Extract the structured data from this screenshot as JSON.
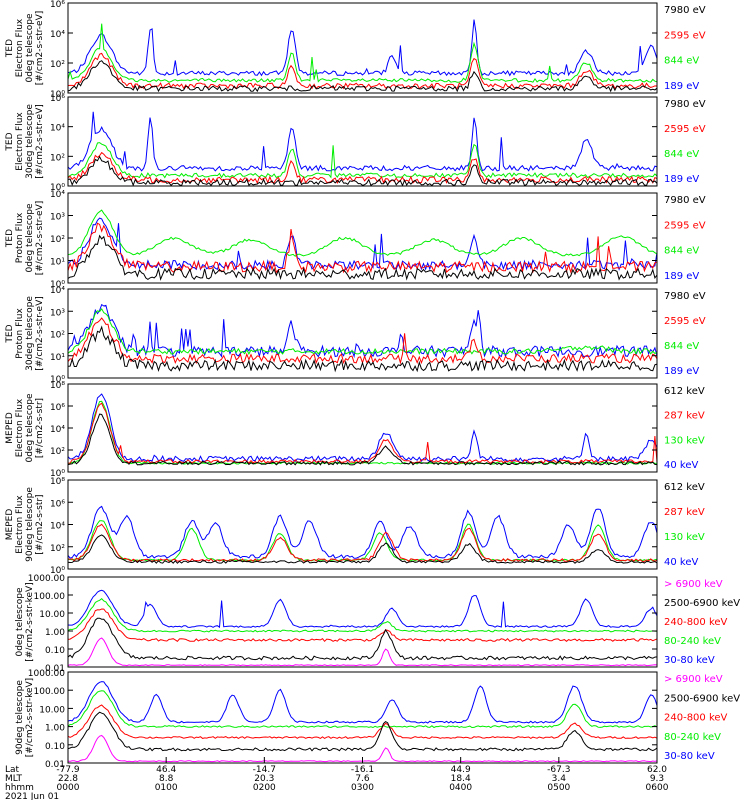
{
  "colors": {
    "blue": "#0000ff",
    "red": "#ff0000",
    "green": "#00ee00",
    "black": "#000000",
    "magenta": "#ff00ff"
  },
  "panels": [
    {
      "ylabel": [
        "TED",
        "Electron Flux",
        "0deg telescope",
        "[#/cm2-s-str-eV]"
      ],
      "ytick_labels": [
        "10⁶",
        "10⁴",
        "10²",
        "10⁰"
      ],
      "legend": [
        {
          "text": "7980 eV",
          "color": "black"
        },
        {
          "text": "2595 eV",
          "color": "red"
        },
        {
          "text": "844 eV",
          "color": "green"
        },
        {
          "text": "189 eV",
          "color": "blue"
        }
      ]
    },
    {
      "ylabel": [
        "TED",
        "Electron Flux",
        "30deg telescope",
        "[#/cm2-s-str-eV]"
      ],
      "ytick_labels": [
        "10⁶",
        "10⁴",
        "10²",
        "10⁰"
      ],
      "legend": [
        {
          "text": "7980 eV",
          "color": "black"
        },
        {
          "text": "2595 eV",
          "color": "red"
        },
        {
          "text": "844 eV",
          "color": "green"
        },
        {
          "text": "189 eV",
          "color": "blue"
        }
      ]
    },
    {
      "ylabel": [
        "TED",
        "Proton Flux",
        "0deg telescope",
        "[#/cm2-s-str-eV]"
      ],
      "ytick_labels": [
        "10⁴",
        "10³",
        "10²",
        "10¹",
        "10⁰"
      ],
      "legend": [
        {
          "text": "7980 eV",
          "color": "black"
        },
        {
          "text": "2595 eV",
          "color": "red"
        },
        {
          "text": "844 eV",
          "color": "green"
        },
        {
          "text": "189 eV",
          "color": "blue"
        }
      ]
    },
    {
      "ylabel": [
        "TED",
        "Proton Flux",
        "30deg telescope",
        "[#/cm2-s-str-eV]"
      ],
      "ytick_labels": [
        "10⁴",
        "10³",
        "10²",
        "10¹",
        "10⁰"
      ],
      "legend": [
        {
          "text": "7980 eV",
          "color": "black"
        },
        {
          "text": "2595 eV",
          "color": "red"
        },
        {
          "text": "844 eV",
          "color": "green"
        },
        {
          "text": "189 eV",
          "color": "blue"
        }
      ]
    },
    {
      "ylabel": [
        "MEPED",
        "Electron Flux",
        "0deg telescope",
        "[#/cm2-s-str]"
      ],
      "ytick_labels": [
        "10⁸",
        "10⁶",
        "10⁴",
        "10²",
        "10⁰"
      ],
      "legend": [
        {
          "text": "612 keV",
          "color": "black"
        },
        {
          "text": "287 keV",
          "color": "red"
        },
        {
          "text": "130 keV",
          "color": "green"
        },
        {
          "text": "40 keV",
          "color": "blue"
        }
      ]
    },
    {
      "ylabel": [
        "MEPED",
        "Electron Flux",
        "90deg telescope",
        "[#/cm2-s-str]"
      ],
      "ytick_labels": [
        "10⁸",
        "10⁶",
        "10⁴",
        "10²",
        "10⁰"
      ],
      "legend": [
        {
          "text": "612 keV",
          "color": "black"
        },
        {
          "text": "287 keV",
          "color": "red"
        },
        {
          "text": "130 keV",
          "color": "green"
        },
        {
          "text": "40 keV",
          "color": "blue"
        }
      ]
    },
    {
      "ylabel": [
        "0deg telescope",
        "[#/cm2-s-str-keV]"
      ],
      "ytick_labels": [
        "1000.00",
        "100.00",
        "10.00",
        "1.00",
        "0.10",
        "0.01"
      ],
      "legend": [
        {
          "text": "> 6900 keV",
          "color": "magenta"
        },
        {
          "text": "2500-6900 keV",
          "color": "black"
        },
        {
          "text": "240-800 keV",
          "color": "red"
        },
        {
          "text": "80-240 keV",
          "color": "green"
        },
        {
          "text": "30-80 keV",
          "color": "blue"
        }
      ]
    },
    {
      "ylabel": [
        "90deg telescope",
        "[#/cm2-s-str-keV]"
      ],
      "ytick_labels": [
        "1000.00",
        "100.00",
        "10.00",
        "1.00",
        "0.10",
        "0.01"
      ],
      "legend": [
        {
          "text": "> 6900 keV",
          "color": "magenta"
        },
        {
          "text": "2500-6900 keV",
          "color": "black"
        },
        {
          "text": "240-800 keV",
          "color": "red"
        },
        {
          "text": "80-240 keV",
          "color": "green"
        },
        {
          "text": "30-80 keV",
          "color": "blue"
        }
      ]
    }
  ],
  "xaxis": {
    "row_labels": [
      "Lat",
      "MLT",
      "hhmm",
      "2021 Jun 01"
    ],
    "ticks": [
      {
        "lat": "-77.9",
        "mlt": "22.8",
        "hhmm": "0000"
      },
      {
        "lat": "46.4",
        "mlt": "8.8",
        "hhmm": "0100"
      },
      {
        "lat": "-14.7",
        "mlt": "20.3",
        "hhmm": "0200"
      },
      {
        "lat": "-16.1",
        "mlt": "7.6",
        "hhmm": "0300"
      },
      {
        "lat": "44.9",
        "mlt": "18.4",
        "hhmm": "0400"
      },
      {
        "lat": "-67.3",
        "mlt": "3.4",
        "hhmm": "0500"
      },
      {
        "lat": "62.0",
        "mlt": "9.3",
        "hhmm": "0600"
      }
    ]
  },
  "chart_data": {
    "type": "line",
    "x_unit": "UT hhmm, 2021 Jun 01",
    "x_range": [
      "0000",
      "0600"
    ],
    "note_series": "Each panel shows several energy-channel time series; peaks estimated by eye.",
    "events_hhmm": [
      "0020",
      "0135",
      "0235",
      "0322",
      "0510",
      "0556"
    ]
  }
}
